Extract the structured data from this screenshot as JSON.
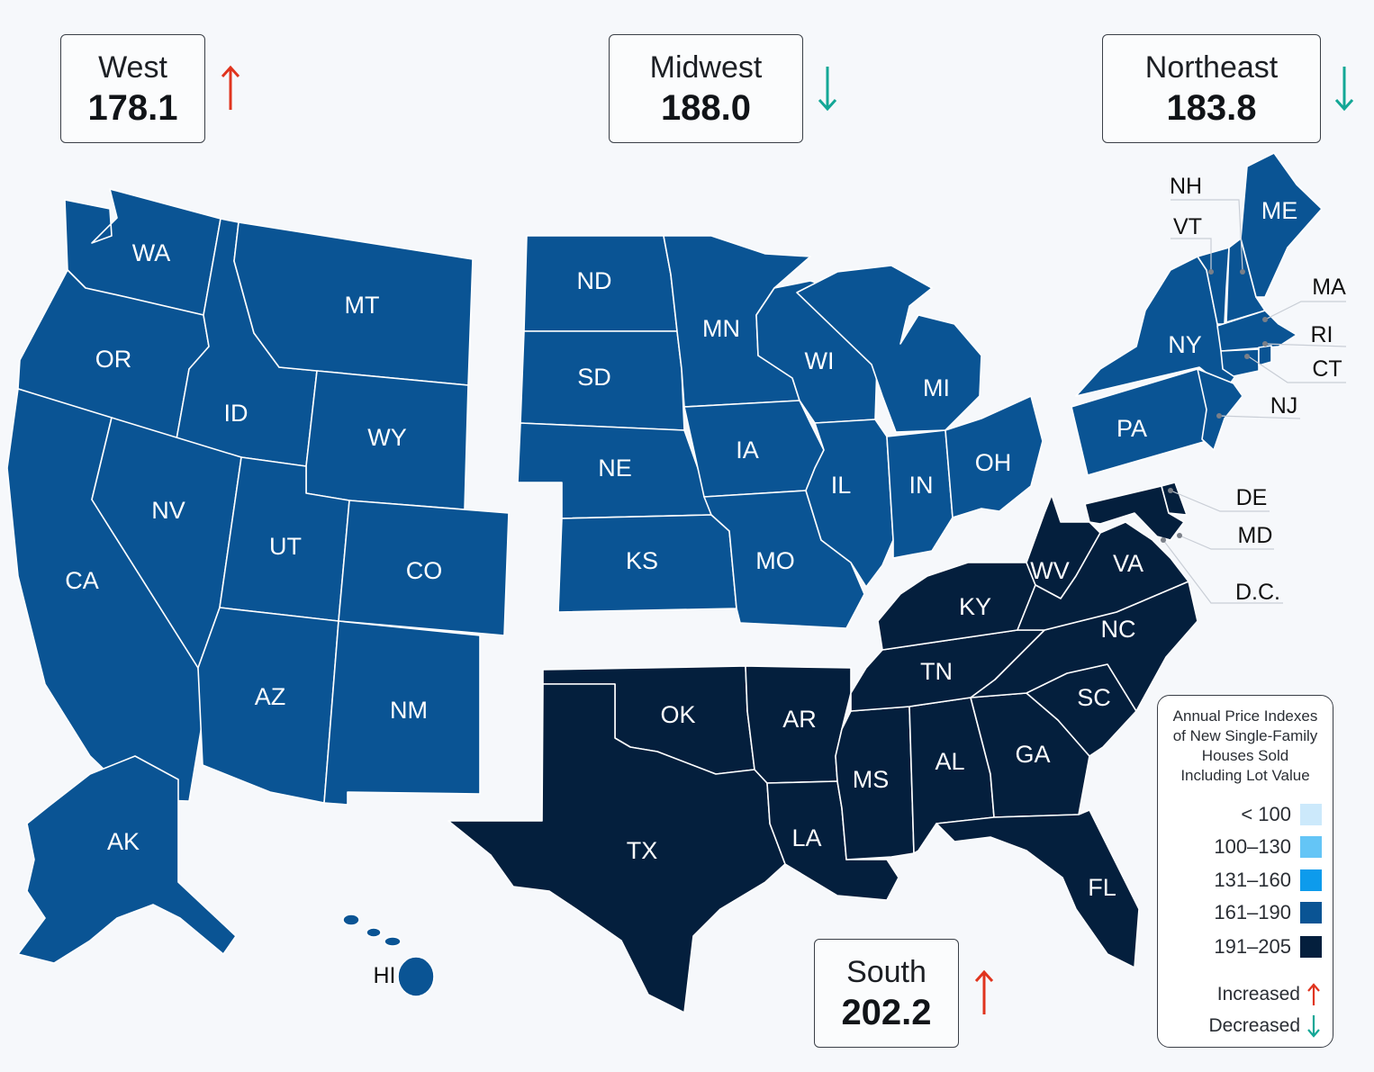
{
  "regions": {
    "west": {
      "name": "West",
      "value": "178.1",
      "trend": "increased"
    },
    "midwest": {
      "name": "Midwest",
      "value": "188.0",
      "trend": "decreased"
    },
    "northeast": {
      "name": "Northeast",
      "value": "183.8",
      "trend": "decreased"
    },
    "south": {
      "name": "South",
      "value": "202.2",
      "trend": "increased"
    }
  },
  "states": {
    "WA": "WA",
    "OR": "OR",
    "CA": "CA",
    "ID": "ID",
    "NV": "NV",
    "MT": "MT",
    "WY": "WY",
    "UT": "UT",
    "CO": "CO",
    "AZ": "AZ",
    "NM": "NM",
    "AK": "AK",
    "HI": "HI",
    "ND": "ND",
    "SD": "SD",
    "NE": "NE",
    "KS": "KS",
    "MN": "MN",
    "IA": "IA",
    "MO": "MO",
    "WI": "WI",
    "IL": "IL",
    "MI": "MI",
    "IN": "IN",
    "OH": "OH",
    "NY": "NY",
    "PA": "PA",
    "ME": "ME",
    "NH": "NH",
    "VT": "VT",
    "MA": "MA",
    "RI": "RI",
    "CT": "CT",
    "NJ": "NJ",
    "OK": "OK",
    "TX": "TX",
    "AR": "AR",
    "LA": "LA",
    "MS": "MS",
    "AL": "AL",
    "TN": "TN",
    "KY": "KY",
    "WV": "WV",
    "VA": "VA",
    "NC": "NC",
    "SC": "SC",
    "GA": "GA",
    "FL": "FL",
    "DE": "DE",
    "MD": "MD",
    "DC": "D.C."
  },
  "legend": {
    "title_lines": [
      "Annual Price Indexes",
      "of New Single-Family",
      "Houses Sold",
      "Including Lot Value"
    ],
    "bins": [
      {
        "label": "< 100",
        "color": "#cce9fb"
      },
      {
        "label": "100–130",
        "color": "#64c5f6"
      },
      {
        "label": "131–160",
        "color": "#0d9bec"
      },
      {
        "label": "161–190",
        "color": "#0a5494"
      },
      {
        "label": "191–205",
        "color": "#041f3d"
      }
    ],
    "increased_label": "Increased",
    "decreased_label": "Decreased"
  },
  "colors": {
    "increase_arrow": "#e0341e",
    "decrease_arrow": "#13a796",
    "region_161_190": "#0a5494",
    "region_191_205": "#041f3d"
  }
}
